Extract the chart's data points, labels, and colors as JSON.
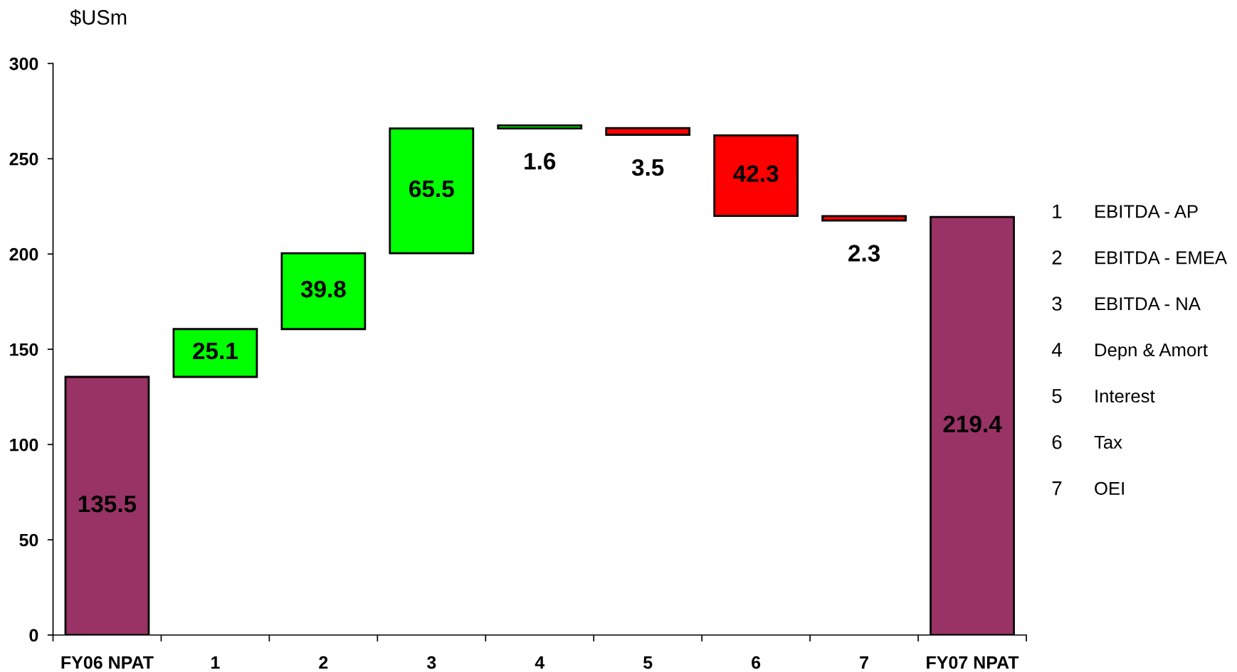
{
  "chart_data": {
    "type": "bar",
    "ylabel": "$USm",
    "categories": [
      "FY06 NPAT",
      "1",
      "2",
      "3",
      "4",
      "5",
      "6",
      "7",
      "FY07 NPAT"
    ],
    "values": [
      135.5,
      25.1,
      39.8,
      65.5,
      1.6,
      -3.5,
      -42.3,
      -2.3,
      219.4
    ],
    "base": [
      0,
      135.5,
      160.6,
      200.4,
      265.9,
      266.1,
      262.3,
      219.9,
      0
    ],
    "value_labels": [
      "135.5",
      "25.1",
      "39.8",
      "65.5",
      "1.6",
      "3.5",
      "42.3",
      "2.3",
      "219.4"
    ],
    "colors": [
      "#993366",
      "#00ff00",
      "#00ff00",
      "#00ff00",
      "#00ff00",
      "#ff0000",
      "#ff0000",
      "#ff0000",
      "#993366"
    ],
    "ylim": [
      0,
      300
    ],
    "yticks": [
      0,
      50,
      100,
      150,
      200,
      250,
      300
    ],
    "annotations": [
      "1",
      "EBITDA - AP",
      "2",
      "EBITDA - EMEA",
      "3",
      "EBITDA - NA",
      "4",
      "Depn & Amort",
      "5",
      "Interest",
      "6",
      "Tax",
      "7",
      "OEI"
    ]
  }
}
